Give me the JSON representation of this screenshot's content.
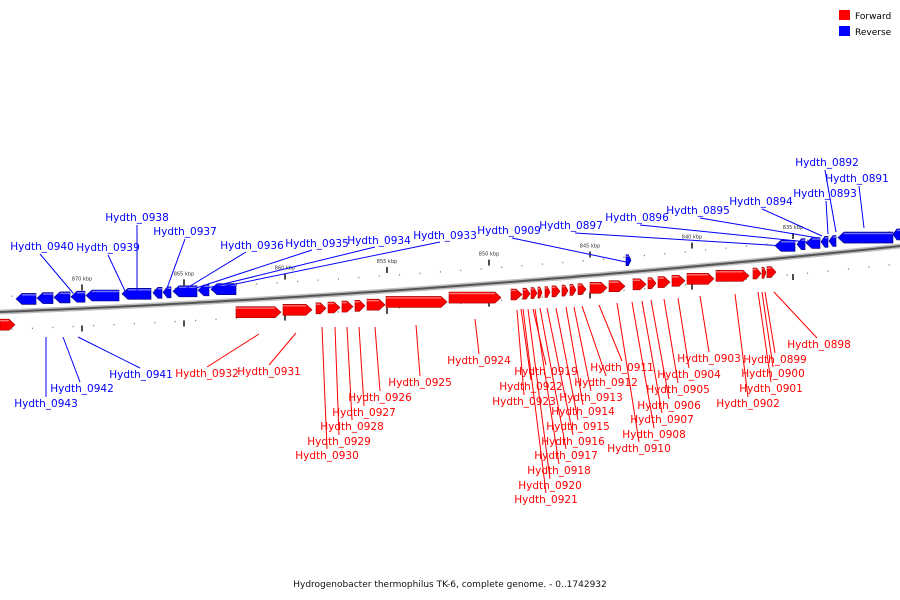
{
  "legend": {
    "forward": {
      "label": "Forward",
      "color": "#ff0000"
    },
    "reverse": {
      "label": "Reverse",
      "color": "#0000ff"
    }
  },
  "caption": "Hydrogenobacter thermophilus TK-6, complete genome. - 0..1742932",
  "scale_labels": [
    "870 kbp",
    "865 kbp",
    "860 kbp",
    "855 kbp",
    "850 kbp",
    "845 kbp",
    "840 kbp",
    "835 kbp"
  ],
  "genes": {
    "reverse": [
      "Hydth_0891",
      "Hydth_0892",
      "Hydth_0893",
      "Hydth_0894",
      "Hydth_0895",
      "Hydth_0896",
      "Hydth_0897",
      "Hydth_0909",
      "Hydth_0933",
      "Hydth_0934",
      "Hydth_0935",
      "Hydth_0936",
      "Hydth_0937",
      "Hydth_0938",
      "Hydth_0939",
      "Hydth_0940",
      "Hydth_0941",
      "Hydth_0942",
      "Hydth_0943"
    ],
    "forward": [
      "Hydth_0898",
      "Hydth_0899",
      "Hydth_0900",
      "Hydth_0901",
      "Hydth_0902",
      "Hydth_0903",
      "Hydth_0904",
      "Hydth_0905",
      "Hydth_0906",
      "Hydth_0907",
      "Hydth_0908",
      "Hydth_0910",
      "Hydth_0911",
      "Hydth_0912",
      "Hydth_0913",
      "Hydth_0914",
      "Hydth_0915",
      "Hydth_0916",
      "Hydth_0917",
      "Hydth_0918",
      "Hydth_0919",
      "Hydth_0920",
      "Hydth_0921",
      "Hydth_0922",
      "Hydth_0923",
      "Hydth_0924",
      "Hydth_0925",
      "Hydth_0926",
      "Hydth_0927",
      "Hydth_0928",
      "Hydth_0929",
      "Hydth_0930",
      "Hydth_0931",
      "Hydth_0932"
    ]
  }
}
